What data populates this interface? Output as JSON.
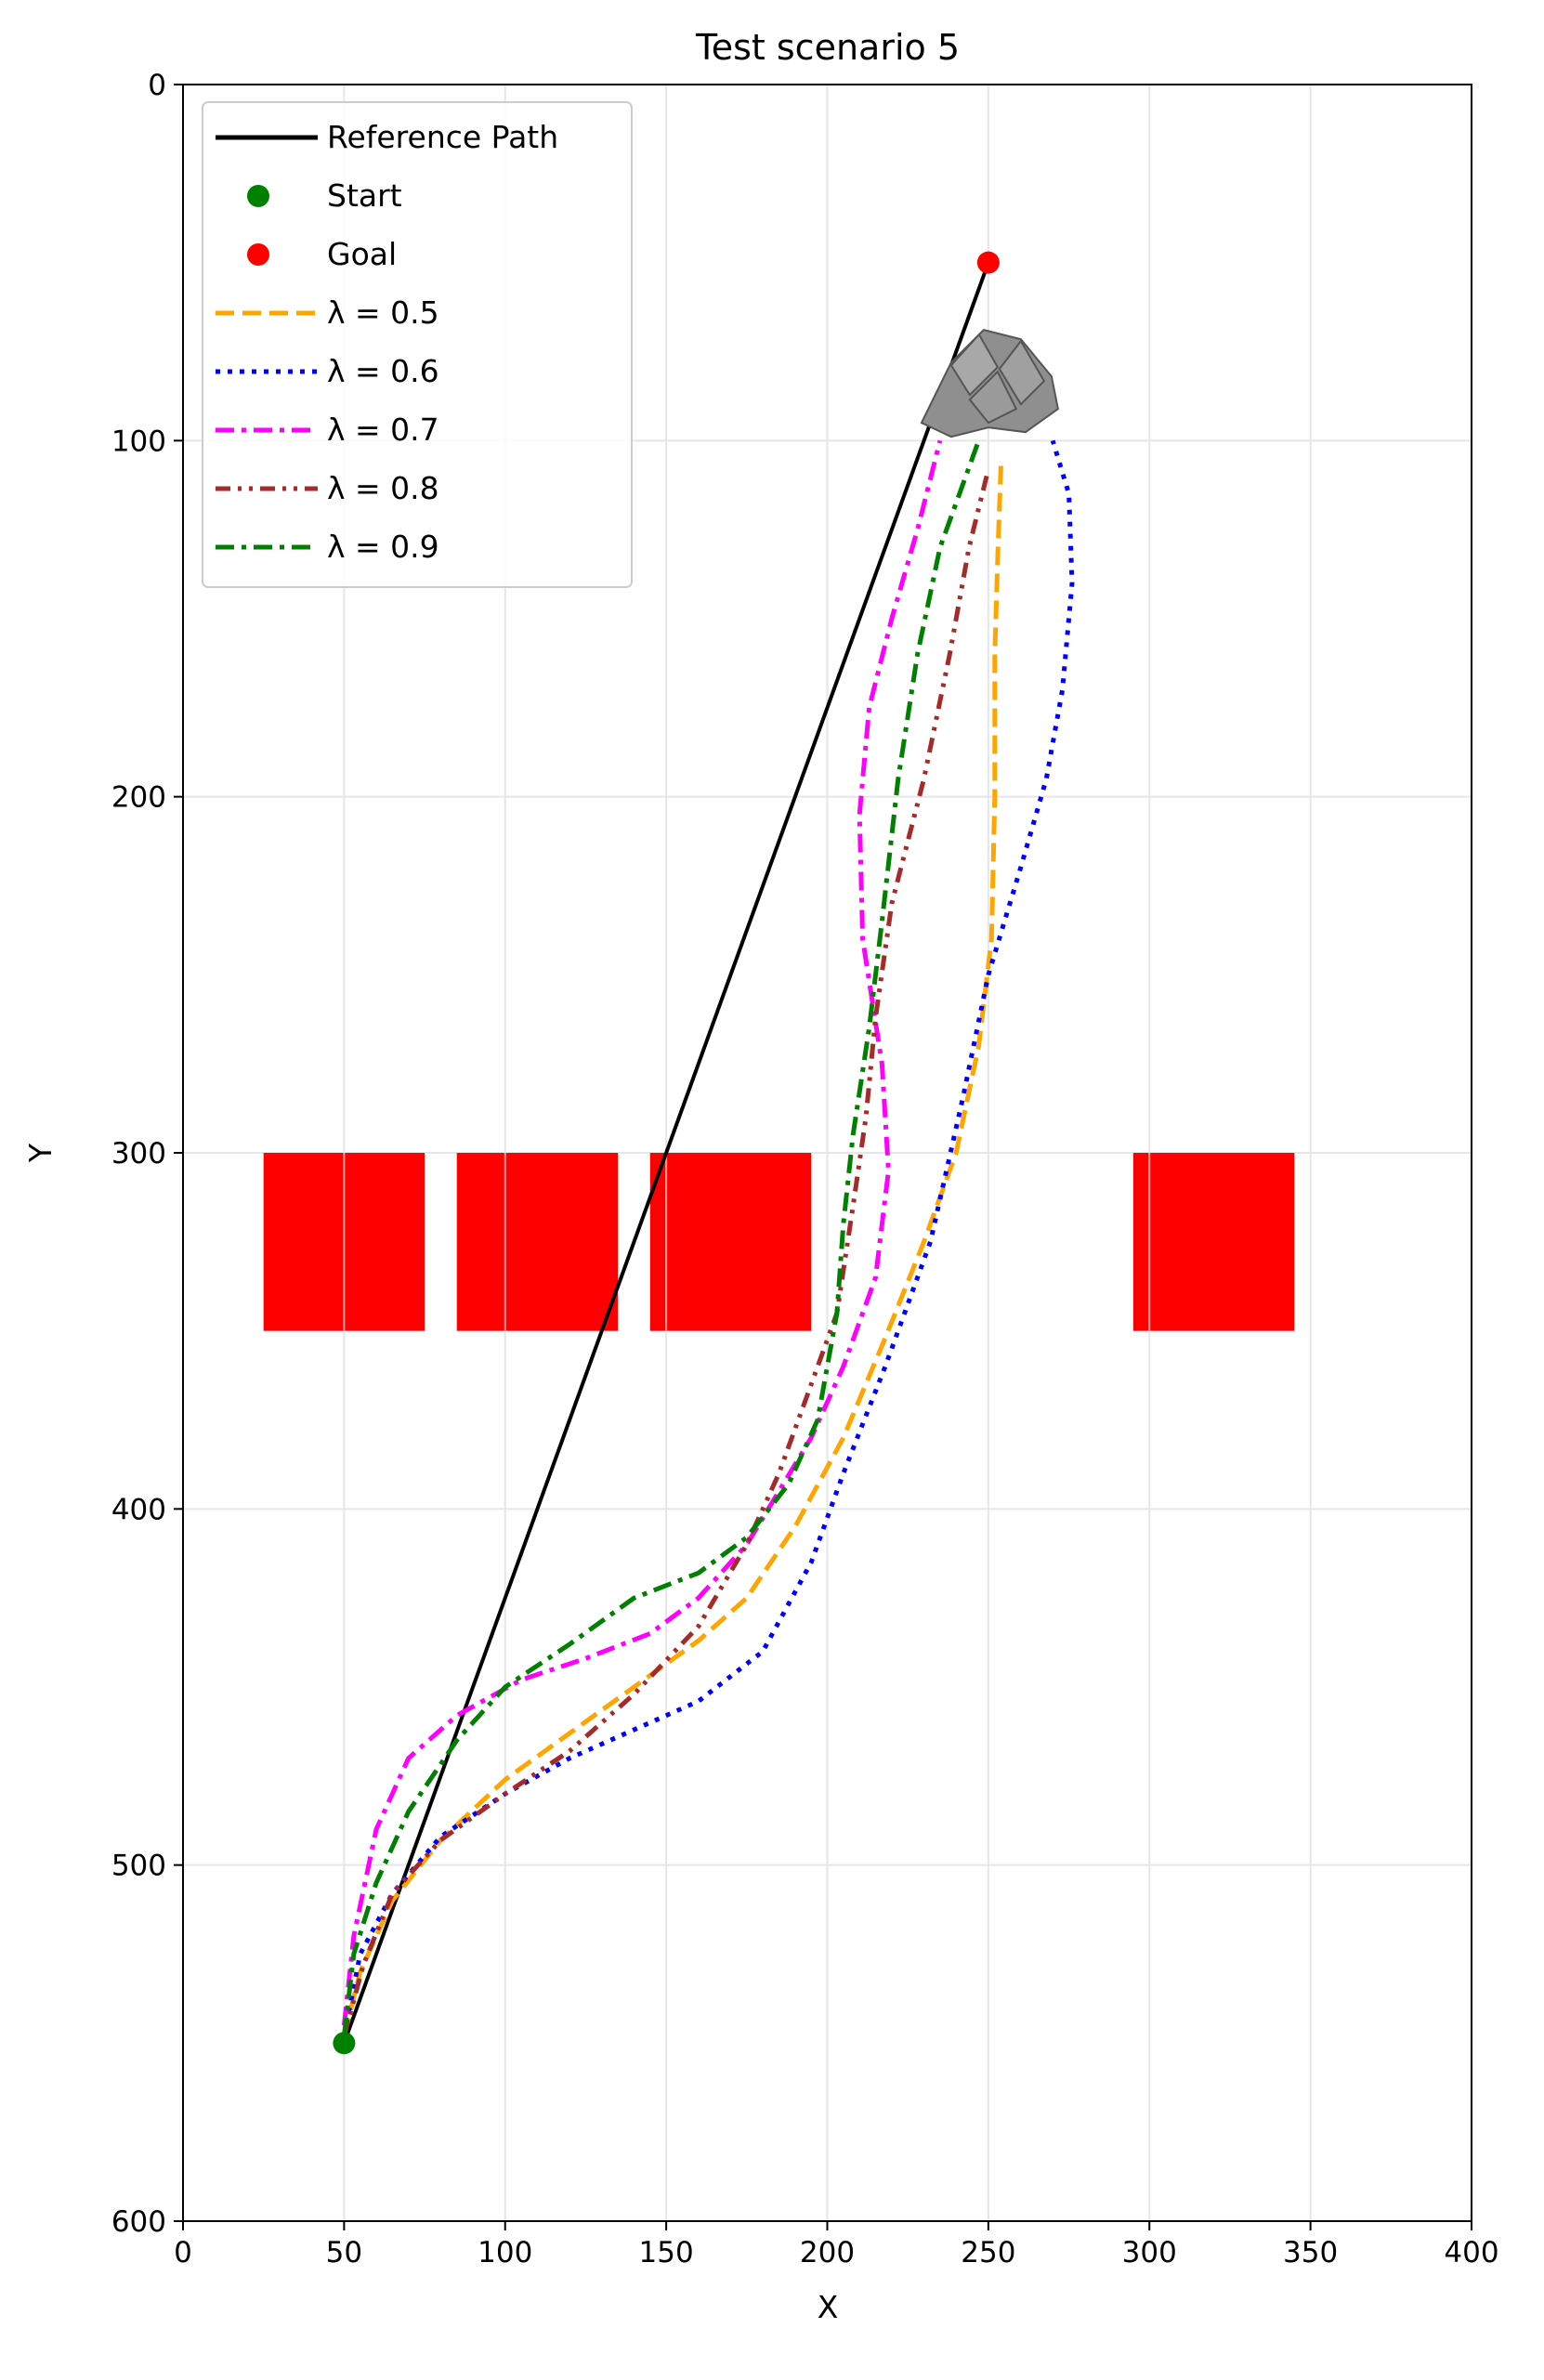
{
  "chart_data": {
    "type": "line",
    "title": "Test scenario 5",
    "xlabel": "X",
    "ylabel": "Y",
    "xlim": [
      0,
      400
    ],
    "ylim": [
      0,
      600
    ],
    "y_inverted": true,
    "grid": true,
    "legend_position": "upper-left",
    "x_ticks": [
      0,
      50,
      100,
      150,
      200,
      250,
      300,
      350,
      400
    ],
    "y_ticks": [
      0,
      100,
      200,
      300,
      400,
      500,
      600
    ],
    "start": {
      "name": "Start",
      "x": 50,
      "y": 550,
      "color": "#008000"
    },
    "goal": {
      "name": "Goal",
      "x": 250,
      "y": 50,
      "color": "#ff0000"
    },
    "obstacles": [
      {
        "x0": 25,
        "x1": 75,
        "y0": 300,
        "y1": 350,
        "color": "#ff0000"
      },
      {
        "x0": 85,
        "x1": 135,
        "y0": 300,
        "y1": 350,
        "color": "#ff0000"
      },
      {
        "x0": 145,
        "x1": 195,
        "y0": 300,
        "y1": 350,
        "color": "#ff0000"
      },
      {
        "x0": 295,
        "x1": 345,
        "y0": 300,
        "y1": 350,
        "color": "#ff0000"
      }
    ],
    "vehicle_icon": "vehicle-icon",
    "series": [
      {
        "name": "Reference Path",
        "color": "#000000",
        "dash": "solid",
        "points": [
          [
            50,
            550
          ],
          [
            250,
            50
          ]
        ]
      },
      {
        "name": "λ = 0.5",
        "color": "#ffa500",
        "dash": "dashed",
        "points": [
          [
            50,
            548
          ],
          [
            55,
            530
          ],
          [
            65,
            510
          ],
          [
            80,
            493
          ],
          [
            100,
            476
          ],
          [
            120,
            463
          ],
          [
            140,
            450
          ],
          [
            160,
            437
          ],
          [
            175,
            425
          ],
          [
            190,
            405
          ],
          [
            205,
            380
          ],
          [
            218,
            352
          ],
          [
            230,
            325
          ],
          [
            240,
            300
          ],
          [
            247,
            270
          ],
          [
            251,
            240
          ],
          [
            252,
            200
          ],
          [
            252,
            160
          ],
          [
            253,
            130
          ],
          [
            254,
            105
          ]
        ]
      },
      {
        "name": "λ = 0.6",
        "color": "#0000ff",
        "dash": "dotted",
        "points": [
          [
            50,
            548
          ],
          [
            55,
            525
          ],
          [
            65,
            508
          ],
          [
            80,
            492
          ],
          [
            100,
            480
          ],
          [
            120,
            470
          ],
          [
            140,
            462
          ],
          [
            160,
            454
          ],
          [
            180,
            440
          ],
          [
            195,
            415
          ],
          [
            205,
            390
          ],
          [
            218,
            360
          ],
          [
            232,
            325
          ],
          [
            242,
            285
          ],
          [
            250,
            250
          ],
          [
            260,
            220
          ],
          [
            268,
            195
          ],
          [
            273,
            170
          ],
          [
            276,
            140
          ],
          [
            275,
            115
          ],
          [
            270,
            100
          ]
        ]
      },
      {
        "name": "λ = 0.7",
        "color": "#ff00ff",
        "dash": "dashdot",
        "points": [
          [
            50,
            545
          ],
          [
            53,
            520
          ],
          [
            60,
            490
          ],
          [
            70,
            470
          ],
          [
            85,
            458
          ],
          [
            105,
            448
          ],
          [
            125,
            442
          ],
          [
            145,
            435
          ],
          [
            160,
            425
          ],
          [
            175,
            410
          ],
          [
            185,
            395
          ],
          [
            195,
            380
          ],
          [
            205,
            360
          ],
          [
            215,
            335
          ],
          [
            219,
            305
          ],
          [
            217,
            275
          ],
          [
            211,
            240
          ],
          [
            210,
            205
          ],
          [
            213,
            175
          ],
          [
            220,
            150
          ],
          [
            228,
            125
          ],
          [
            235,
            100
          ]
        ]
      },
      {
        "name": "λ = 0.8",
        "color": "#a52a2a",
        "dash": "dashdotdot",
        "points": [
          [
            50,
            548
          ],
          [
            56,
            528
          ],
          [
            65,
            508
          ],
          [
            80,
            493
          ],
          [
            100,
            480
          ],
          [
            120,
            468
          ],
          [
            140,
            452
          ],
          [
            160,
            433
          ],
          [
            175,
            410
          ],
          [
            185,
            390
          ],
          [
            195,
            365
          ],
          [
            203,
            345
          ],
          [
            208,
            315
          ],
          [
            212,
            290
          ],
          [
            215,
            262
          ],
          [
            220,
            230
          ],
          [
            230,
            195
          ],
          [
            238,
            160
          ],
          [
            244,
            130
          ],
          [
            250,
            108
          ]
        ]
      },
      {
        "name": "λ = 0.9",
        "color": "#008000",
        "dash": "dashdot",
        "points": [
          [
            50,
            548
          ],
          [
            53,
            525
          ],
          [
            60,
            505
          ],
          [
            70,
            485
          ],
          [
            85,
            465
          ],
          [
            100,
            450
          ],
          [
            120,
            438
          ],
          [
            140,
            425
          ],
          [
            160,
            418
          ],
          [
            175,
            408
          ],
          [
            188,
            393
          ],
          [
            197,
            375
          ],
          [
            203,
            345
          ],
          [
            205,
            320
          ],
          [
            208,
            295
          ],
          [
            213,
            265
          ],
          [
            217,
            235
          ],
          [
            222,
            195
          ],
          [
            228,
            160
          ],
          [
            235,
            130
          ],
          [
            243,
            110
          ],
          [
            247,
            100
          ]
        ]
      }
    ]
  }
}
